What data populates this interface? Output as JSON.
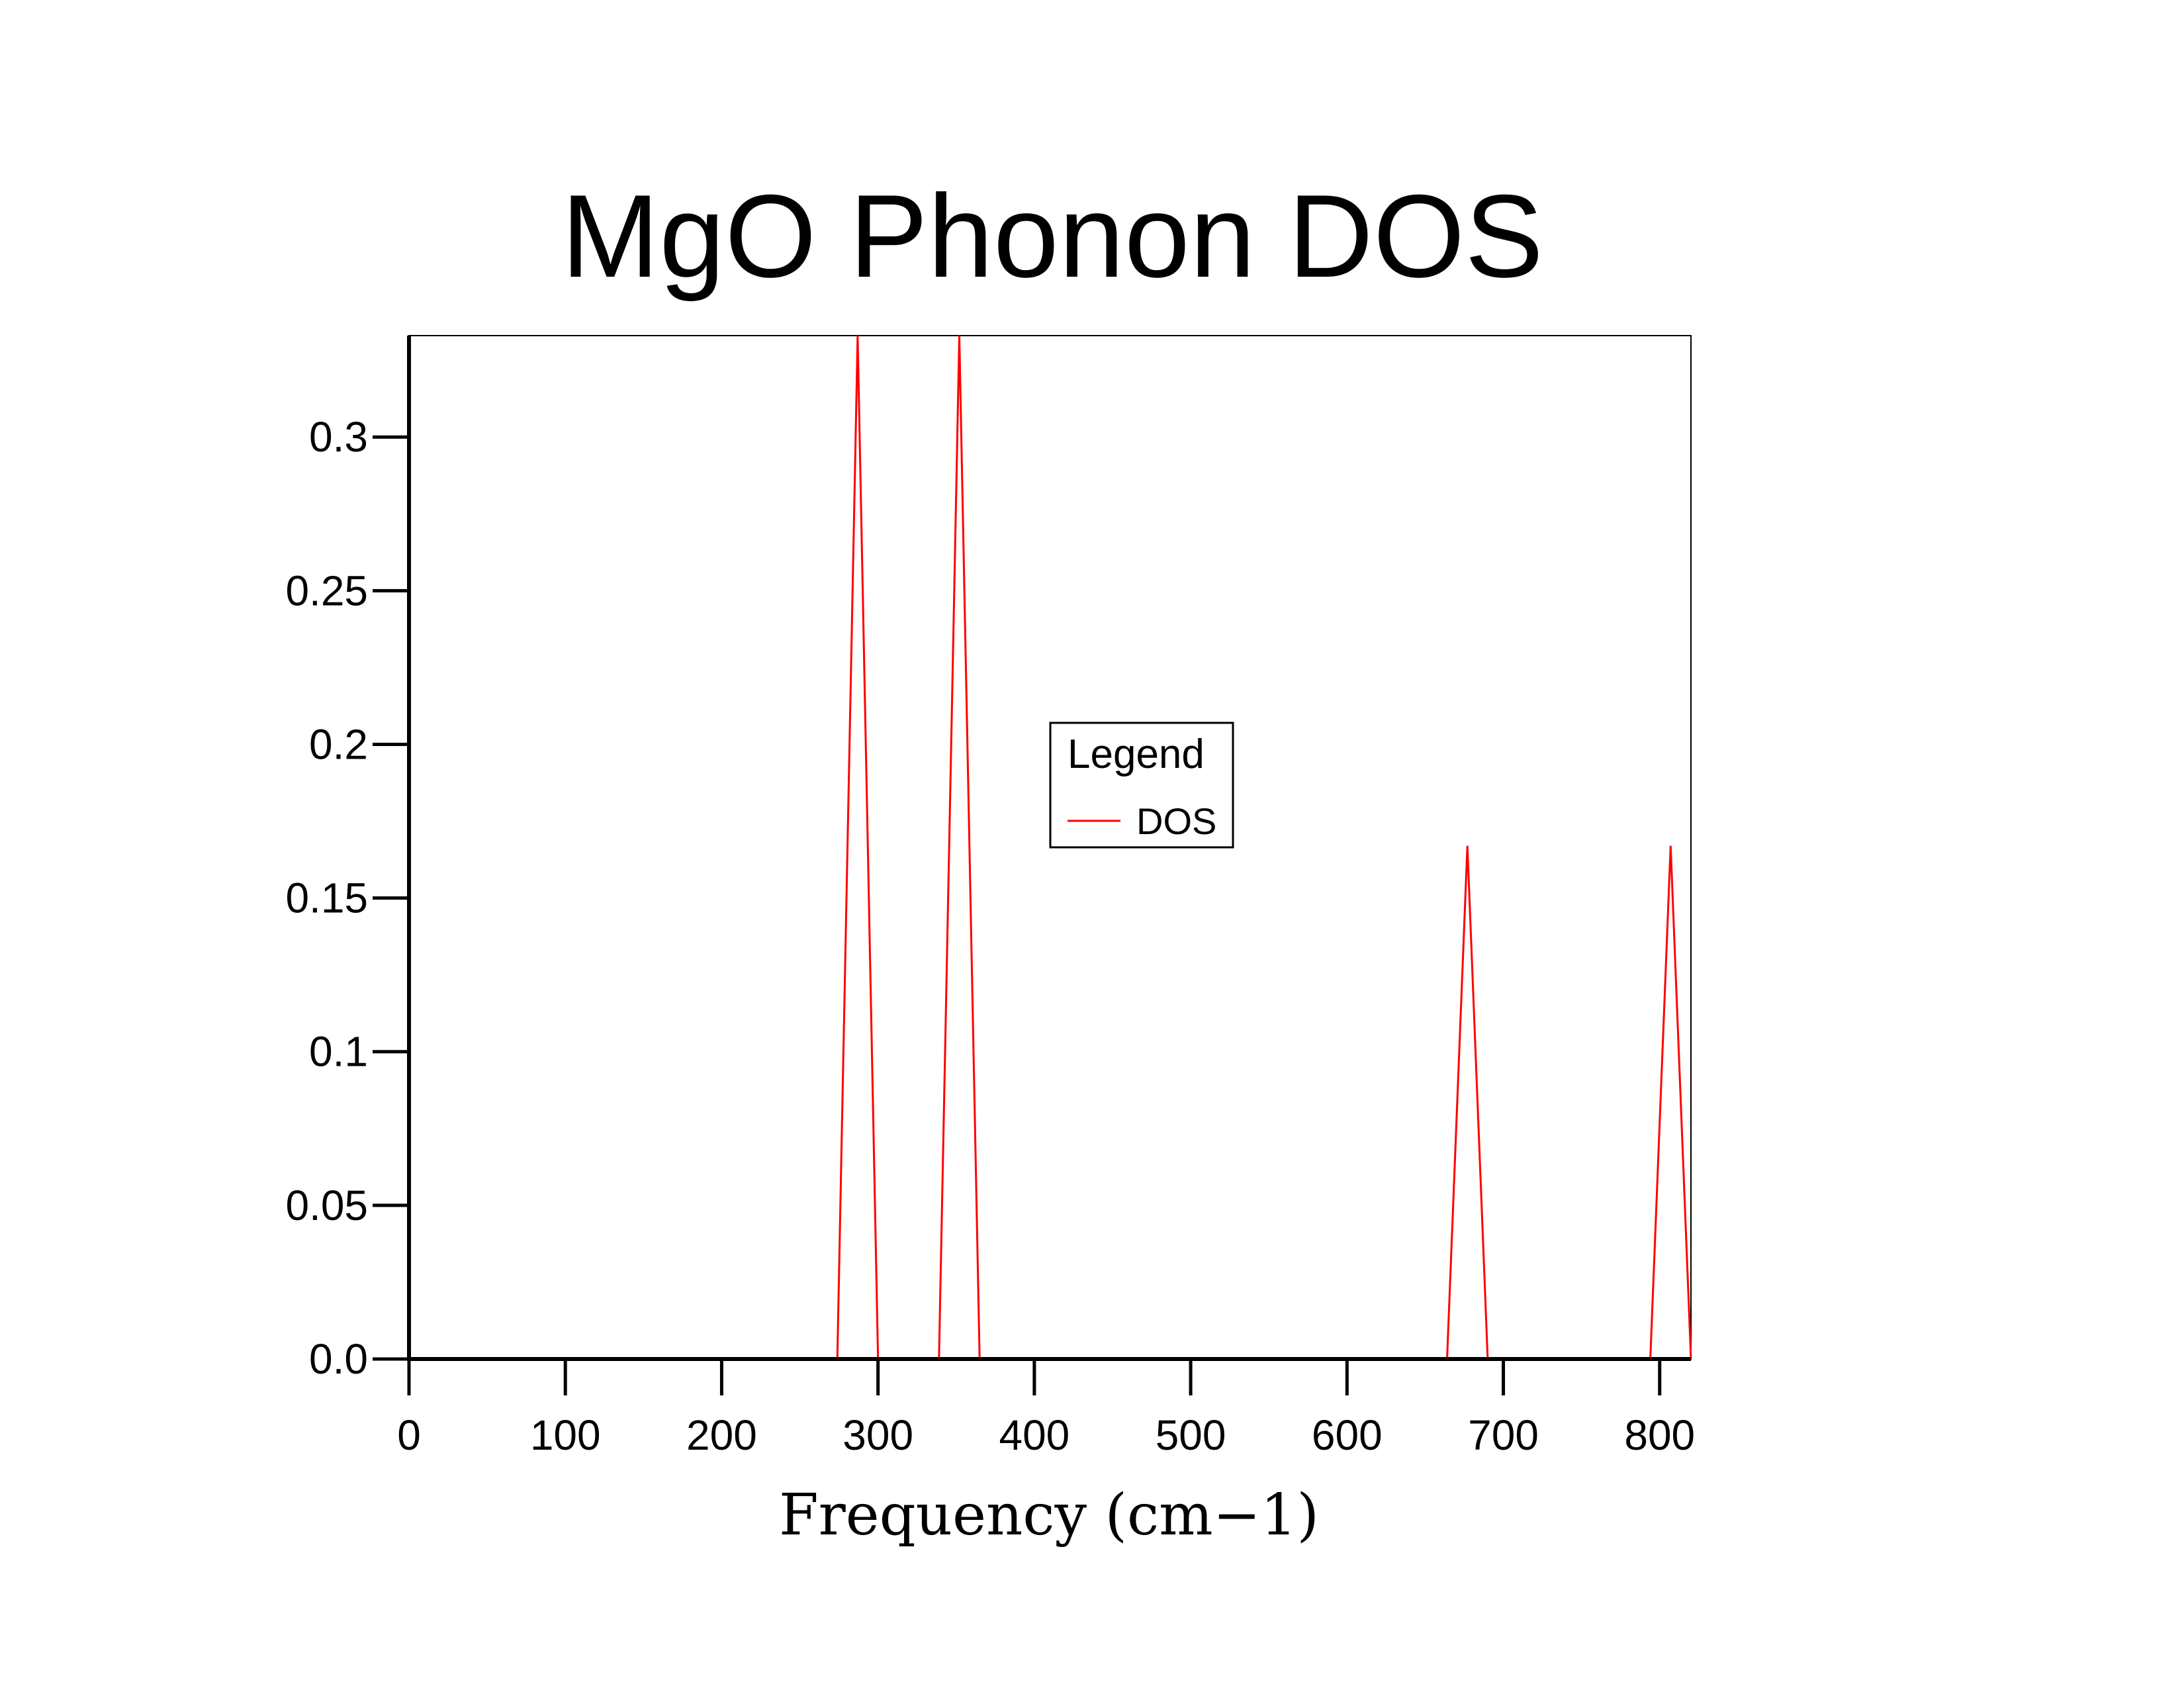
{
  "chart_data": {
    "type": "line",
    "title": "MgO Phonon DOS",
    "xlabel": "Frequency (cm−1)",
    "ylabel": "",
    "xlim": [
      0,
      820
    ],
    "ylim": [
      0,
      0.333
    ],
    "xticks": [
      0,
      100,
      200,
      300,
      400,
      500,
      600,
      700,
      800
    ],
    "xtick_labels": [
      "0",
      "100",
      "200",
      "300",
      "400",
      "500",
      "600",
      "700",
      "800"
    ],
    "yticks": [
      0.0,
      0.05,
      0.1,
      0.15,
      0.2,
      0.25,
      0.3
    ],
    "ytick_labels": [
      "0.0",
      "0.05",
      "0.1",
      "0.15",
      "0.2",
      "0.25",
      "0.3"
    ],
    "grid": false,
    "legend": {
      "title": "Legend",
      "placement": "center",
      "entries": [
        {
          "name": "DOS",
          "color": "#ff0000"
        }
      ]
    },
    "series": [
      {
        "name": "DOS",
        "color": "#ff0000",
        "x": [
          0,
          274,
          287,
          300,
          339,
          352,
          365,
          664,
          677,
          690,
          794,
          807,
          820
        ],
        "y": [
          0,
          0,
          0.333,
          0,
          0,
          0.333,
          0,
          0,
          0.167,
          0,
          0,
          0.167,
          0
        ]
      }
    ]
  }
}
